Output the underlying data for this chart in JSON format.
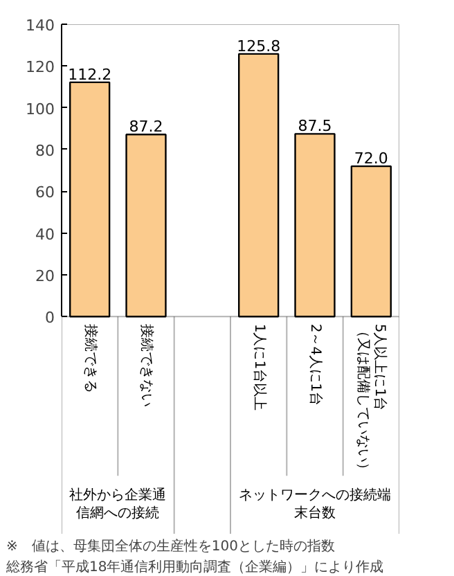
{
  "chart_data": {
    "type": "bar",
    "categories": [
      "接続できる",
      "接続できない",
      null,
      "1人に1台以上",
      "2～4人に1台",
      "5人以上に1台（又は配備していない）"
    ],
    "values": [
      112.2,
      87.2,
      null,
      125.8,
      87.5,
      72.0
    ],
    "value_labels": [
      "112.2",
      "87.2",
      null,
      "125.8",
      "87.5",
      "72.0"
    ],
    "color": "#fbcb8d",
    "ylim": [
      0,
      140
    ],
    "yticks": [
      0,
      20,
      40,
      60,
      80,
      100,
      120,
      140
    ],
    "grid": false,
    "annotations": [
      "社外から企業通信網への接続",
      "ネットワークへの接続端末台数",
      "※　値は、母集団全体の生産性を100とした時の指数",
      "総務省「平成18年通信利用動向調査（企業編）」により作成"
    ]
  }
}
